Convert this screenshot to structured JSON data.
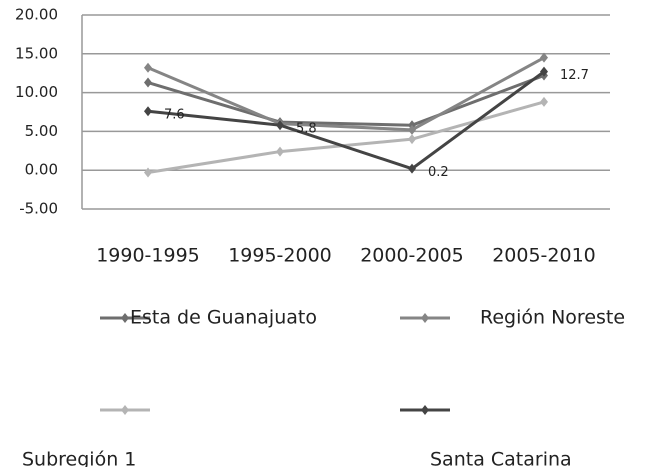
{
  "chart_data": {
    "type": "line",
    "categories": [
      "1990-1995",
      "1995-2000",
      "2000-2005",
      "2005-2010"
    ],
    "series": [
      {
        "name": "Esta de Guanajuato",
        "color": "#6e6e6e",
        "values": [
          11.3,
          6.2,
          5.8,
          12.2
        ]
      },
      {
        "name": "Región Noreste",
        "color": "#858585",
        "values": [
          13.2,
          6.0,
          5.2,
          14.5
        ]
      },
      {
        "name": "Subregión 1",
        "color": "#b4b4b4",
        "values": [
          -0.3,
          2.4,
          4.0,
          8.8
        ]
      },
      {
        "name": "Santa Catarina",
        "color": "#444444",
        "values": [
          7.6,
          5.8,
          0.2,
          12.7
        ],
        "value_labels": [
          "7.6",
          "5.8",
          "0.2",
          "12.7"
        ]
      }
    ],
    "ylim": [
      -5,
      20
    ],
    "yticks": [
      {
        "value": -5,
        "label": "-5.00"
      },
      {
        "value": 0,
        "label": "0.00"
      },
      {
        "value": 5,
        "label": "5.00"
      },
      {
        "value": 10,
        "label": "10.00"
      },
      {
        "value": 15,
        "label": "15.00"
      },
      {
        "value": 20,
        "label": "20.00"
      }
    ],
    "grid": true
  }
}
